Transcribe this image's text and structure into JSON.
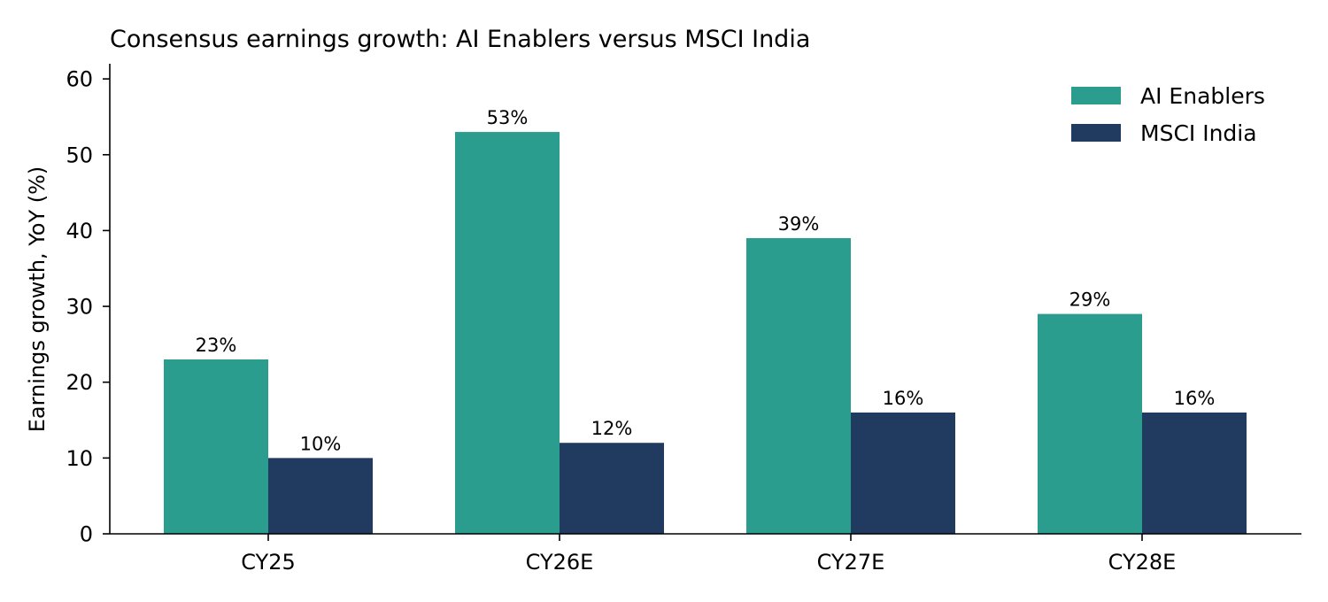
{
  "chart_data": {
    "type": "bar",
    "title": "Consensus earnings growth: AI Enablers versus MSCI India",
    "xlabel": "",
    "ylabel": "Earnings growth, YoY (%)",
    "categories": [
      "CY25",
      "CY26E",
      "CY27E",
      "CY28E"
    ],
    "series": [
      {
        "name": "AI Enablers",
        "values": [
          23,
          53,
          39,
          29
        ],
        "labels": [
          "23%",
          "53%",
          "39%",
          "29%"
        ],
        "color": "#2a9d8f"
      },
      {
        "name": "MSCI India",
        "values": [
          10,
          12,
          16,
          16
        ],
        "labels": [
          "10%",
          "12%",
          "16%",
          "16%"
        ],
        "color": "#213a5f"
      }
    ],
    "ylim": [
      0,
      62
    ],
    "yticks": [
      0,
      10,
      20,
      30,
      40,
      50,
      60
    ],
    "grid": false,
    "legend_position": "top-right"
  }
}
